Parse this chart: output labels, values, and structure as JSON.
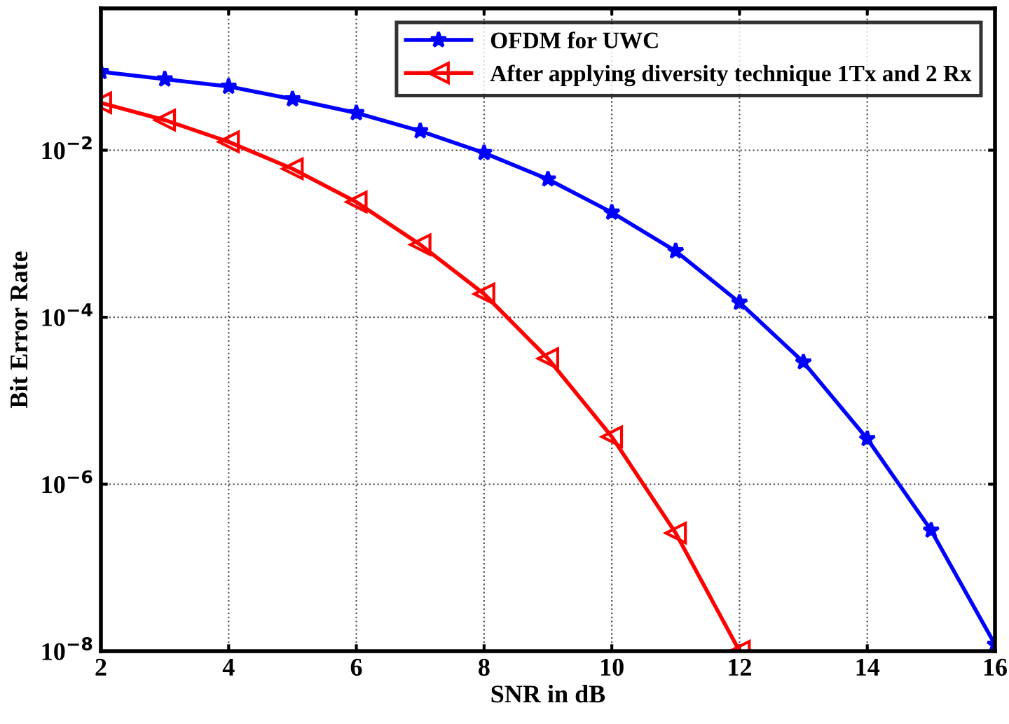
{
  "chart_data": {
    "type": "line",
    "xlabel": "SNR in dB",
    "ylabel": "Bit Error Rate",
    "log": "y",
    "x": [
      2,
      3,
      4,
      5,
      6,
      7,
      8,
      9,
      10,
      11,
      12,
      13,
      14,
      15,
      16
    ],
    "xlim": [
      2,
      16
    ],
    "xticks": [
      2,
      4,
      6,
      8,
      10,
      12,
      14,
      16
    ],
    "ylim": [
      1e-08,
      0.5
    ],
    "yticks": [
      {
        "value": 1e-08,
        "label": "10$^{−8}$"
      },
      {
        "value": 1e-06,
        "label": "10$^{−6}$"
      },
      {
        "value": 0.0001,
        "label": "10$^{−4}$"
      },
      {
        "value": 0.01,
        "label": "10$^{−2}$"
      }
    ],
    "grid": true,
    "legend": "top right",
    "line_style": "solid",
    "series": [
      {
        "name": "OFDM for UWC",
        "color": "#0000ff",
        "marker": "star",
        "values": [
          0.087,
          0.071,
          0.058,
          0.041,
          0.028,
          0.017,
          0.0093,
          0.0045,
          0.0018,
          0.00062,
          0.00015,
          2.9e-05,
          3.5e-06,
          2.8e-07,
          1.2e-08
        ]
      },
      {
        "name": "After applying diversity technique 1Tx and 2 Rx",
        "color": "#ff0000",
        "marker": "triangle",
        "values": [
          0.037,
          0.023,
          0.0126,
          0.006,
          0.0024,
          0.00074,
          0.00019,
          3.2e-05,
          3.7e-06,
          2.6e-07,
          1e-08,
          null,
          null,
          null,
          null
        ]
      }
    ]
  }
}
